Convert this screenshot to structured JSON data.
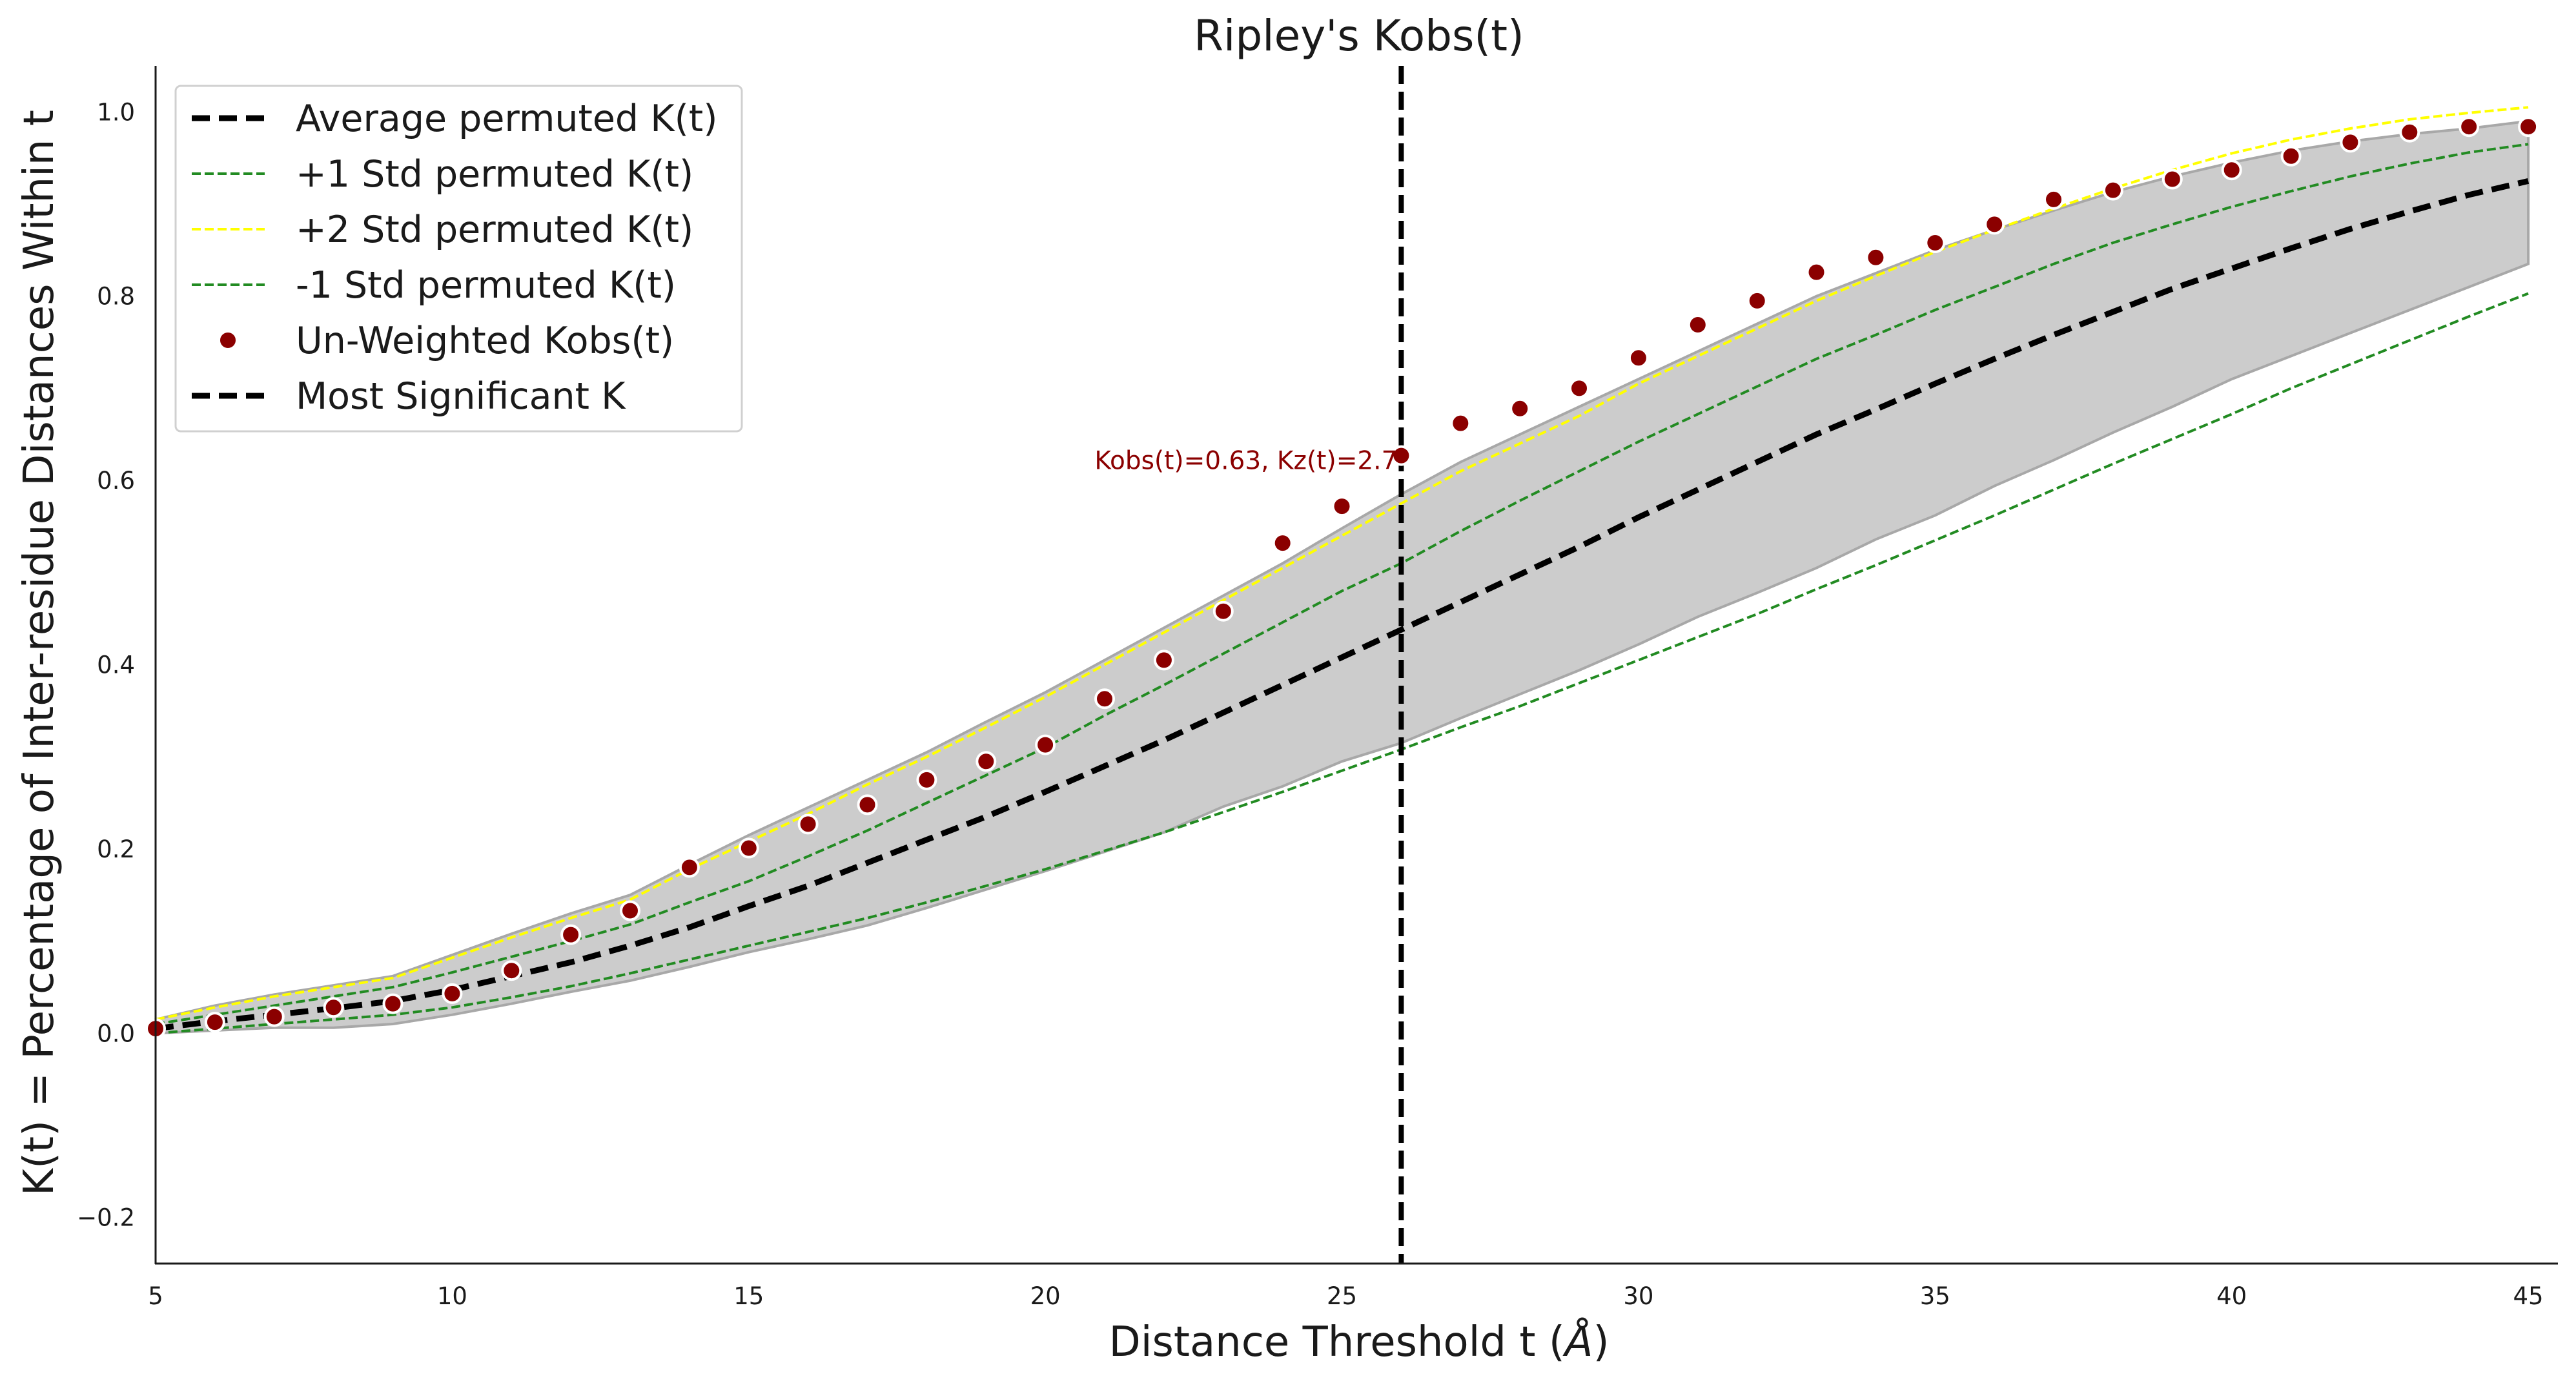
{
  "chart_data": {
    "type": "line",
    "title": "Ripley's Kobs(t)",
    "xlabel": "Distance Threshold t (Å)",
    "ylabel": "K(t) = Percentage of Inter-residue Distances Within t",
    "xlim": [
      5,
      45.5
    ],
    "ylim": [
      -0.25,
      1.05
    ],
    "xticks": [
      5,
      10,
      15,
      20,
      25,
      30,
      35,
      40,
      45
    ],
    "yticks": [
      -0.2,
      0.0,
      0.2,
      0.4,
      0.6,
      0.8,
      1.0
    ],
    "ytick_labels": [
      "−0.2",
      "0.0",
      "0.2",
      "0.4",
      "0.6",
      "0.8",
      "1.0"
    ],
    "grid": false,
    "legend_position": "top-left",
    "x": [
      5,
      6,
      7,
      8,
      9,
      10,
      11,
      12,
      13,
      14,
      15,
      16,
      17,
      18,
      19,
      20,
      21,
      22,
      23,
      24,
      25,
      26,
      27,
      28,
      29,
      30,
      31,
      32,
      33,
      34,
      35,
      36,
      37,
      38,
      39,
      40,
      41,
      42,
      43,
      44,
      45
    ],
    "band": {
      "upper": [
        0.015,
        0.03,
        0.042,
        0.052,
        0.062,
        0.085,
        0.108,
        0.13,
        0.15,
        0.183,
        0.215,
        0.245,
        0.275,
        0.305,
        0.338,
        0.37,
        0.405,
        0.44,
        0.475,
        0.51,
        0.548,
        0.585,
        0.62,
        0.65,
        0.68,
        0.71,
        0.74,
        0.77,
        0.8,
        0.825,
        0.85,
        0.872,
        0.893,
        0.913,
        0.93,
        0.945,
        0.958,
        0.968,
        0.976,
        0.982,
        0.99
      ],
      "lower": [
        0.0,
        0.003,
        0.006,
        0.006,
        0.01,
        0.02,
        0.032,
        0.045,
        0.057,
        0.072,
        0.088,
        0.102,
        0.117,
        0.136,
        0.156,
        0.176,
        0.197,
        0.218,
        0.246,
        0.268,
        0.295,
        0.315,
        0.342,
        0.368,
        0.394,
        0.422,
        0.452,
        0.478,
        0.505,
        0.536,
        0.562,
        0.594,
        0.622,
        0.652,
        0.68,
        0.71,
        0.735,
        0.76,
        0.785,
        0.81,
        0.835
      ],
      "color": "#cccccc",
      "edge_color": "#a8a8a8"
    },
    "series": [
      {
        "name": "Average permuted K(t)",
        "style": "dashed",
        "color": "#000000",
        "values": [
          0.005,
          0.013,
          0.02,
          0.027,
          0.035,
          0.047,
          0.062,
          0.077,
          0.095,
          0.115,
          0.138,
          0.16,
          0.185,
          0.21,
          0.235,
          0.262,
          0.29,
          0.318,
          0.348,
          0.378,
          0.408,
          0.438,
          0.468,
          0.498,
          0.528,
          0.56,
          0.59,
          0.62,
          0.65,
          0.677,
          0.705,
          0.732,
          0.758,
          0.783,
          0.808,
          0.83,
          0.852,
          0.873,
          0.892,
          0.91,
          0.925
        ]
      },
      {
        "name": "+1 Std permuted K(t)",
        "style": "dashed",
        "color": "#228B22",
        "values": [
          0.01,
          0.02,
          0.03,
          0.04,
          0.05,
          0.066,
          0.083,
          0.1,
          0.118,
          0.142,
          0.165,
          0.192,
          0.22,
          0.25,
          0.28,
          0.31,
          0.345,
          0.378,
          0.412,
          0.446,
          0.48,
          0.51,
          0.545,
          0.578,
          0.61,
          0.642,
          0.672,
          0.702,
          0.732,
          0.758,
          0.785,
          0.81,
          0.835,
          0.858,
          0.878,
          0.897,
          0.914,
          0.93,
          0.944,
          0.956,
          0.965
        ]
      },
      {
        "name": "+2 Std permuted K(t)",
        "style": "dashed",
        "color": "#FFFF00",
        "values": [
          0.015,
          0.028,
          0.04,
          0.05,
          0.06,
          0.082,
          0.104,
          0.125,
          0.145,
          0.178,
          0.208,
          0.238,
          0.27,
          0.3,
          0.332,
          0.365,
          0.4,
          0.435,
          0.47,
          0.505,
          0.54,
          0.575,
          0.61,
          0.64,
          0.67,
          0.705,
          0.735,
          0.765,
          0.795,
          0.822,
          0.848,
          0.872,
          0.895,
          0.917,
          0.937,
          0.955,
          0.97,
          0.982,
          0.992,
          0.999,
          1.005
        ]
      },
      {
        "name": "-1 Std permuted K(t)",
        "style": "dashed",
        "color": "#228B22",
        "values": [
          0.0,
          0.005,
          0.01,
          0.015,
          0.02,
          0.028,
          0.039,
          0.051,
          0.065,
          0.08,
          0.095,
          0.11,
          0.125,
          0.142,
          0.16,
          0.178,
          0.198,
          0.218,
          0.24,
          0.262,
          0.285,
          0.308,
          0.332,
          0.355,
          0.38,
          0.405,
          0.43,
          0.455,
          0.482,
          0.508,
          0.535,
          0.562,
          0.59,
          0.618,
          0.645,
          0.672,
          0.7,
          0.726,
          0.752,
          0.778,
          0.803
        ]
      },
      {
        "name": "Un-Weighted Kobs(t)",
        "style": "markers",
        "color": "#8B0000",
        "values": [
          0.005,
          0.012,
          0.018,
          0.028,
          0.032,
          0.043,
          0.068,
          0.107,
          0.133,
          0.18,
          0.201,
          0.227,
          0.248,
          0.275,
          0.295,
          0.313,
          0.363,
          0.405,
          0.458,
          0.532,
          0.572,
          0.627,
          0.662,
          0.678,
          0.7,
          0.733,
          0.769,
          0.795,
          0.826,
          0.842,
          0.858,
          0.878,
          0.905,
          0.915,
          0.927,
          0.937,
          0.952,
          0.967,
          0.978,
          0.984,
          0.984
        ]
      },
      {
        "name": "Most Significant K",
        "style": "dashed-vertical",
        "color": "#000000",
        "x": 26
      }
    ],
    "annotation": {
      "text": "Kobs(t)=0.63, Kz(t)=2.7",
      "x": 26,
      "y": 0.63,
      "color": "#8B0000"
    }
  }
}
